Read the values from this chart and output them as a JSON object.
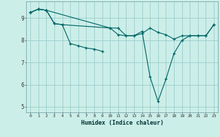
{
  "xlabel": "Humidex (Indice chaleur)",
  "background_color": "#cceee8",
  "line_color": "#006666",
  "grid_color": "#99cccc",
  "xlim": [
    -0.5,
    23.5
  ],
  "ylim": [
    4.75,
    9.75
  ],
  "yticks": [
    5,
    6,
    7,
    8,
    9
  ],
  "xticks": [
    0,
    1,
    2,
    3,
    4,
    5,
    6,
    7,
    8,
    9,
    10,
    11,
    12,
    13,
    14,
    15,
    16,
    17,
    18,
    19,
    20,
    21,
    22,
    23
  ],
  "lines": [
    {
      "x": [
        0,
        1,
        2,
        3,
        4,
        5,
        6,
        7,
        8,
        9
      ],
      "y": [
        9.25,
        9.4,
        9.35,
        8.75,
        8.7,
        7.85,
        7.75,
        7.65,
        7.6,
        7.5
      ]
    },
    {
      "x": [
        0,
        1,
        2,
        3,
        4,
        10,
        11,
        12,
        13,
        14,
        15,
        16,
        17,
        18,
        19,
        20,
        21,
        22,
        23
      ],
      "y": [
        9.25,
        9.4,
        9.35,
        8.75,
        8.7,
        8.55,
        8.55,
        8.2,
        8.2,
        8.3,
        8.55,
        8.35,
        8.25,
        8.05,
        8.2,
        8.2,
        8.2,
        8.2,
        8.7
      ]
    },
    {
      "x": [
        0,
        1,
        2,
        10,
        11,
        12,
        13,
        14,
        15,
        16,
        17,
        18,
        19,
        20,
        21,
        22,
        23
      ],
      "y": [
        9.25,
        9.4,
        9.35,
        8.55,
        8.25,
        8.2,
        8.2,
        8.4,
        6.35,
        5.25,
        6.25,
        7.4,
        8.0,
        8.2,
        8.2,
        8.2,
        8.7
      ]
    }
  ]
}
